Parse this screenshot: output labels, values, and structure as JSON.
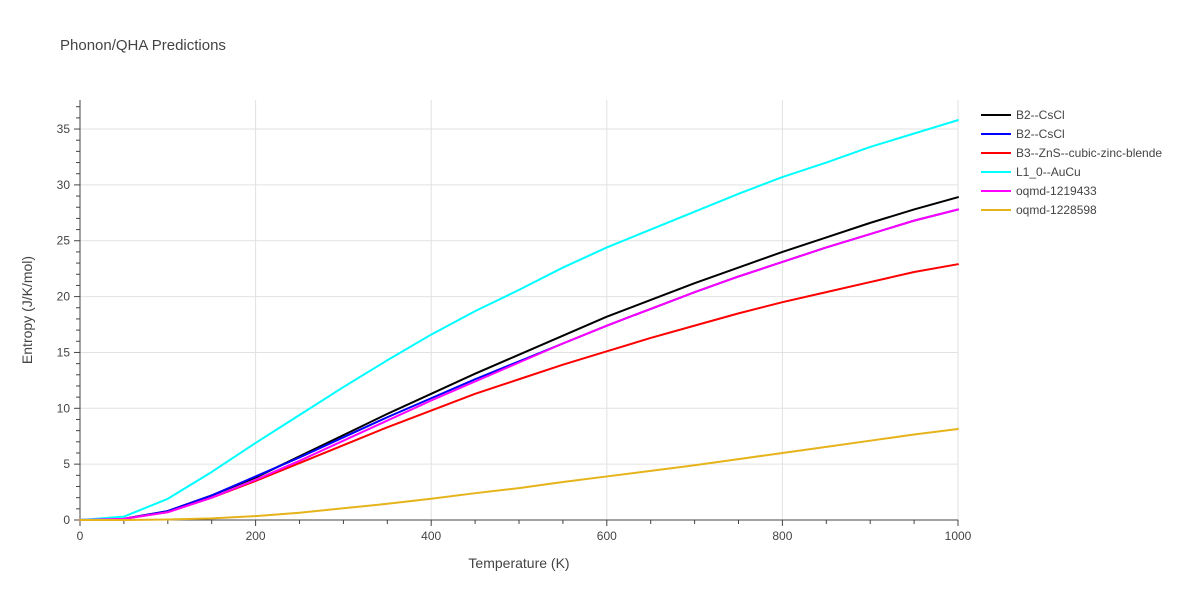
{
  "chart_data": {
    "type": "line",
    "title": "Phonon/QHA Predictions",
    "xlabel": "Temperature (K)",
    "ylabel": "Entropy (J/K/mol)",
    "xlim": [
      0,
      1000
    ],
    "ylim": [
      0,
      37.6
    ],
    "x_ticks": [
      0,
      200,
      400,
      600,
      800,
      1000
    ],
    "y_ticks": [
      0,
      5,
      10,
      15,
      20,
      25,
      30,
      35
    ],
    "grid": true,
    "legend_position": "top-right",
    "x": [
      0,
      50,
      100,
      150,
      200,
      250,
      300,
      350,
      400,
      450,
      500,
      550,
      600,
      650,
      700,
      750,
      800,
      850,
      900,
      950,
      1000
    ],
    "series": [
      {
        "name": "B2--CsCl",
        "color": "#000000",
        "values": [
          0,
          0.1,
          0.8,
          2.2,
          3.8,
          5.7,
          7.6,
          9.5,
          11.3,
          13.1,
          14.8,
          16.5,
          18.2,
          19.7,
          21.2,
          22.6,
          24.0,
          25.3,
          26.6,
          27.8,
          28.9
        ]
      },
      {
        "name": "B2--CsCl",
        "color": "#0000ff",
        "values": [
          0,
          0.1,
          0.8,
          2.2,
          3.9,
          5.6,
          7.4,
          9.2,
          10.9,
          12.6,
          14.2,
          15.8,
          17.4,
          18.9,
          20.4,
          21.8,
          23.1,
          24.4,
          25.6,
          26.8,
          27.8
        ]
      },
      {
        "name": "B3--ZnS--cubic-zinc-blende",
        "color": "#ff0000",
        "values": [
          0,
          0.1,
          0.7,
          2.0,
          3.5,
          5.1,
          6.7,
          8.3,
          9.8,
          11.3,
          12.6,
          13.9,
          15.1,
          16.3,
          17.4,
          18.5,
          19.5,
          20.4,
          21.3,
          22.2,
          22.9
        ]
      },
      {
        "name": "L1_0--AuCu",
        "color": "#00ffff",
        "values": [
          0,
          0.3,
          1.9,
          4.3,
          6.9,
          9.4,
          11.9,
          14.3,
          16.6,
          18.7,
          20.6,
          22.6,
          24.4,
          26.0,
          27.6,
          29.2,
          30.7,
          32.0,
          33.4,
          34.6,
          35.8
        ]
      },
      {
        "name": "oqmd-1219433",
        "color": "#ff00ff",
        "values": [
          0,
          0.1,
          0.7,
          2.0,
          3.6,
          5.3,
          7.1,
          8.9,
          10.7,
          12.4,
          14.1,
          15.8,
          17.4,
          18.9,
          20.4,
          21.8,
          23.1,
          24.4,
          25.6,
          26.8,
          27.8
        ]
      },
      {
        "name": "oqmd-1228598",
        "color": "#e6b31a",
        "values": [
          0,
          0,
          0.05,
          0.15,
          0.35,
          0.65,
          1.05,
          1.45,
          1.9,
          2.4,
          2.85,
          3.4,
          3.9,
          4.4,
          4.9,
          5.45,
          6.0,
          6.55,
          7.1,
          7.65,
          8.15
        ]
      }
    ]
  }
}
